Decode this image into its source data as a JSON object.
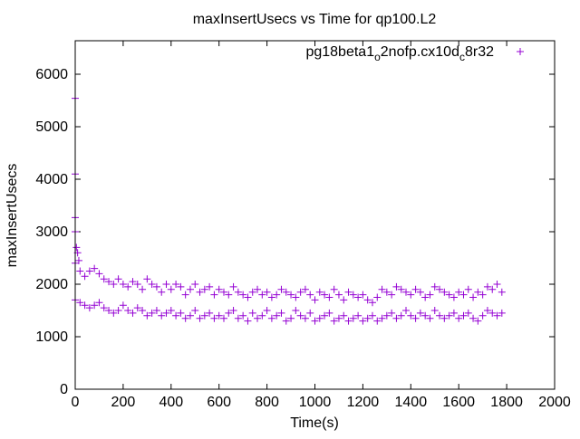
{
  "chart_data": {
    "type": "scatter",
    "title": "maxInsertUsecs vs Time for qp100.L2",
    "xlabel": "Time(s)",
    "ylabel": "maxInsertUsecs",
    "xlim": [
      0,
      2000
    ],
    "ylim": [
      0,
      6600
    ],
    "xticks": [
      0,
      200,
      400,
      600,
      800,
      1000,
      1200,
      1400,
      1600,
      1800,
      2000
    ],
    "yticks": [
      0,
      1000,
      2000,
      3000,
      4000,
      5000,
      6000
    ],
    "grid": false,
    "legend": {
      "position": "top-right",
      "label_parts": [
        "pg18beta1",
        "o",
        "2nofp.cx10d",
        "c",
        "8r32"
      ]
    },
    "series": [
      {
        "name": "pg18beta1_o2nofp.cx10d_c8r32",
        "color": "#9400d3",
        "marker": "plus",
        "outliers": [
          [
            0,
            5540
          ],
          [
            0,
            4100
          ],
          [
            0,
            3270
          ],
          [
            0,
            3000
          ],
          [
            5,
            2700
          ],
          [
            10,
            2600
          ],
          [
            15,
            2450
          ]
        ],
        "x_start": 0,
        "x_step": 20,
        "upper": [
          2400,
          2250,
          2150,
          2250,
          2300,
          2200,
          2100,
          2050,
          2000,
          2100,
          2000,
          1950,
          2050,
          2000,
          1900,
          2100,
          2000,
          1950,
          1850,
          2000,
          1900,
          2000,
          1950,
          1800,
          1900,
          2000,
          1850,
          1900,
          1950,
          1800,
          1900,
          1850,
          1800,
          1950,
          1850,
          1800,
          1750,
          1850,
          1900,
          1800,
          1850,
          1750,
          1800,
          1900,
          1850,
          1800,
          1750,
          1850,
          1900,
          1800,
          1700,
          1850,
          1800,
          1750,
          1900,
          1800,
          1700,
          1850,
          1800,
          1750,
          1800,
          1700,
          1650,
          1750,
          1900,
          1850,
          1800,
          1950,
          1900,
          1850,
          1800,
          1900,
          1850,
          1750,
          1800,
          1950,
          1900,
          1850,
          1800,
          1750,
          1850,
          1800,
          1900,
          1750,
          1850,
          1800,
          1950,
          1900,
          2000,
          1850
        ],
        "lower": [
          1700,
          1650,
          1600,
          1550,
          1600,
          1650,
          1550,
          1500,
          1450,
          1500,
          1600,
          1500,
          1450,
          1550,
          1500,
          1400,
          1450,
          1500,
          1400,
          1450,
          1500,
          1400,
          1450,
          1350,
          1400,
          1500,
          1350,
          1400,
          1450,
          1350,
          1400,
          1350,
          1450,
          1500,
          1350,
          1400,
          1300,
          1450,
          1350,
          1400,
          1500,
          1350,
          1400,
          1450,
          1300,
          1350,
          1500,
          1400,
          1350,
          1450,
          1300,
          1350,
          1400,
          1450,
          1300,
          1350,
          1400,
          1300,
          1350,
          1400,
          1300,
          1350,
          1400,
          1300,
          1350,
          1400,
          1450,
          1350,
          1400,
          1500,
          1400,
          1350,
          1450,
          1400,
          1350,
          1500,
          1400,
          1350,
          1400,
          1450,
          1350,
          1400,
          1450,
          1350,
          1300,
          1400,
          1500,
          1450,
          1400,
          1450
        ]
      }
    ]
  }
}
